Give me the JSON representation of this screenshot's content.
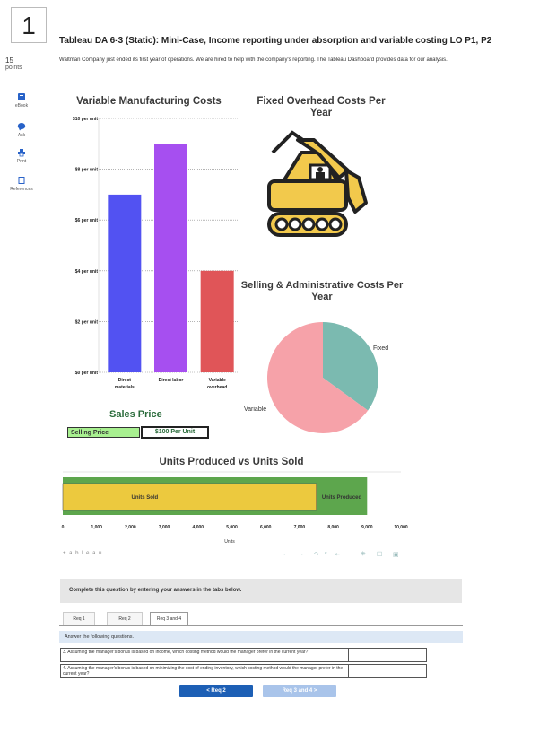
{
  "question": {
    "number": "1",
    "points_value": "15",
    "points_label": "points",
    "title": "Tableau DA 6-3 (Static): Mini-Case, Income reporting under absorption and variable costing LO P1, P2",
    "intro": "Waltman Company just ended its first year of operations. We are hired to help with the company's reporting. The Tableau Dashboard provides data for our analysis."
  },
  "sidebar": {
    "items": [
      {
        "label": "eBook",
        "icon": "book-icon"
      },
      {
        "label": "Ask",
        "icon": "chat-bubble-icon"
      },
      {
        "label": "Print",
        "icon": "printer-icon"
      },
      {
        "label": "References",
        "icon": "references-icon"
      }
    ]
  },
  "dashboard": {
    "variable_costs_title": "Variable Manufacturing Costs",
    "fixed_overhead_title": "Fixed Overhead Costs Per Year",
    "sga_title": "Selling & Administrative Costs Per Year",
    "sales_price_title": "Sales Price",
    "selling_price_label": "Selling Price",
    "selling_price_value": "$100 Per Unit",
    "units_title": "Units Produced vs Units Sold",
    "units_axis_label": "Units",
    "tableau_logo": "+ a b l e a u"
  },
  "chart_data": [
    {
      "type": "bar",
      "title": "Variable Manufacturing Costs",
      "categories": [
        "Direct materials",
        "Direct labor",
        "Variable overhead"
      ],
      "values": [
        7,
        9,
        4
      ],
      "colors": [
        "#5252f2",
        "#a64ff0",
        "#e05558"
      ],
      "ylim": [
        0,
        10
      ],
      "yticks": [
        "$0 per unit",
        "$2 per unit",
        "$4 per unit",
        "$6 per unit",
        "$8 per unit",
        "$10 per unit"
      ],
      "grid": true
    },
    {
      "type": "pie",
      "title": "Selling & Administrative Costs Per Year",
      "labels": [
        "Fixed",
        "Variable"
      ],
      "values": [
        35,
        65
      ],
      "colors": [
        "#7bbab0",
        "#f6a2a9"
      ]
    },
    {
      "type": "bar",
      "orientation": "horizontal",
      "title": "Units Produced vs Units Sold",
      "series": [
        {
          "name": "Units Produced",
          "value": 9000,
          "color": "#5da64d"
        },
        {
          "name": "Units Sold",
          "value": 7500,
          "color": "#ecc93e"
        }
      ],
      "xlim": [
        0,
        10000
      ],
      "xticks": [
        "0",
        "1,000",
        "2,000",
        "3,000",
        "4,000",
        "5,000",
        "6,000",
        "7,000",
        "8,000",
        "9,000",
        "10,000"
      ],
      "xlabel": "Units"
    }
  ],
  "instructions": "Complete this question by entering your answers in the tabs below.",
  "tabs": [
    {
      "label": "Req 1"
    },
    {
      "label": "Req 2"
    },
    {
      "label": "Req 3 and 4"
    }
  ],
  "answer_prompt": "Answer the following questions.",
  "questions": [
    {
      "text": "3. Assuming the manager's bonus is based on income, which costing method would the manager prefer in the current year?",
      "value": ""
    },
    {
      "text": "4. Assuming the manager's bonus is based on minimizing the cost of ending inventory, which costing method would the manager prefer in the current year?",
      "value": ""
    }
  ],
  "nav": {
    "prev_label": "< Req 2",
    "next_label": "Req 3 and 4 >",
    "prev_color": "#1d5fb5",
    "next_color": "#a9c4ea"
  }
}
